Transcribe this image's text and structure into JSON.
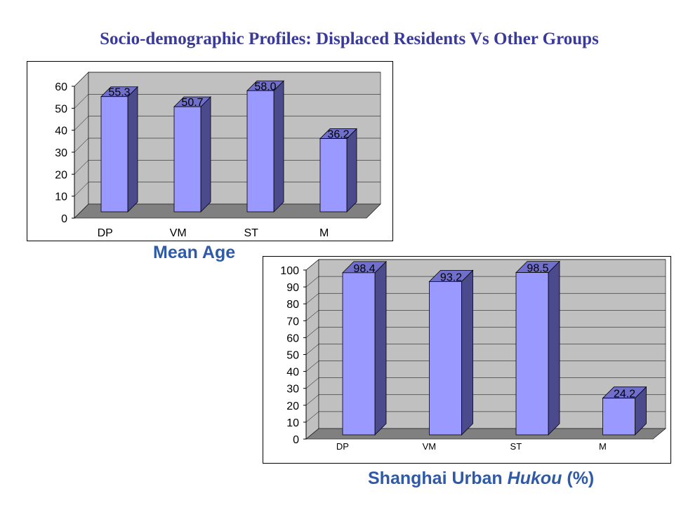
{
  "title": "Socio-demographic Profiles: Displaced Residents Vs Other Groups",
  "colors": {
    "bar_front": "#9999ff",
    "bar_side": "#4a4a8c",
    "bar_top": "#7070cc",
    "wall": "#c0c0c0",
    "floor": "#808080",
    "title": "#3a3a9a",
    "caption": "#2f5aa8"
  },
  "chart_data": [
    {
      "type": "bar",
      "caption": "Mean Age",
      "categories": [
        "DP",
        "VM",
        "ST",
        "M"
      ],
      "values": [
        55.3,
        50.7,
        58.0,
        36.2
      ],
      "data_labels": [
        "55.3",
        "50.7",
        "58.0",
        "36.2"
      ],
      "ylim": [
        0,
        60
      ],
      "yticks": [
        0,
        10,
        20,
        30,
        40,
        50,
        60
      ],
      "grid": true
    },
    {
      "type": "bar",
      "caption_parts": [
        "Shanghai Urban ",
        "Hukou",
        " (%)"
      ],
      "categories": [
        "DP",
        "VM",
        "ST",
        "M"
      ],
      "values": [
        98.4,
        93.2,
        98.5,
        24.2
      ],
      "data_labels": [
        "98.4",
        "93.2",
        "98.5",
        "24.2"
      ],
      "ylim": [
        0,
        100
      ],
      "yticks": [
        0,
        10,
        20,
        30,
        40,
        50,
        60,
        70,
        80,
        90,
        100
      ],
      "grid": true
    }
  ]
}
